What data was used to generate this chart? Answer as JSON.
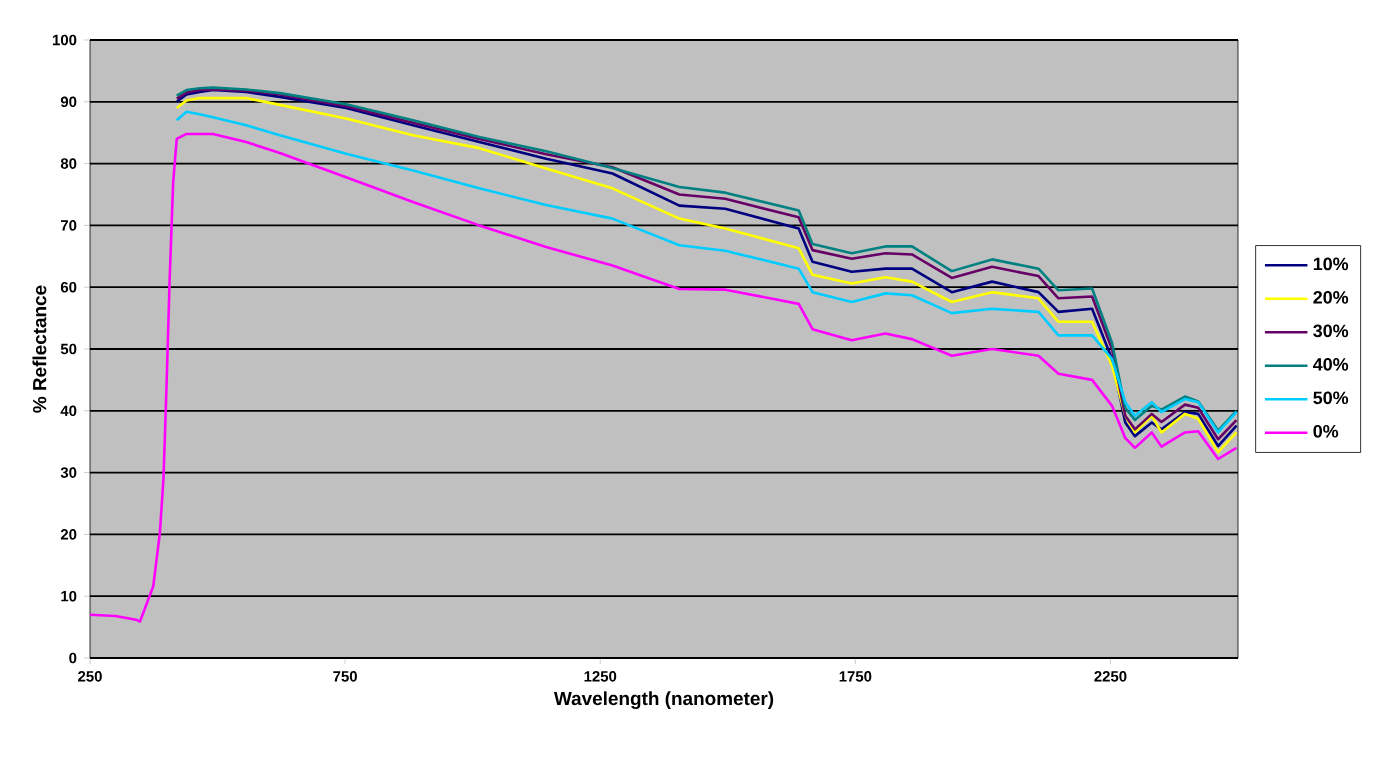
{
  "chart_data": {
    "type": "line",
    "xlabel": "Wavelength (nanometer)",
    "ylabel": "% Reflectance",
    "x": [
      250,
      300,
      340,
      348,
      374,
      387,
      394,
      400,
      406,
      413,
      420,
      439,
      465,
      491,
      556,
      622,
      752,
      883,
      1013,
      1144,
      1274,
      1405,
      1495,
      1639,
      1666,
      1743,
      1809,
      1861,
      1939,
      2018,
      2109,
      2148,
      2214,
      2253,
      2279,
      2298,
      2331,
      2350,
      2396,
      2422,
      2461,
      2497
    ],
    "series": [
      {
        "name": "10%",
        "color": "#000080",
        "values": [
          null,
          null,
          null,
          null,
          null,
          null,
          null,
          null,
          null,
          null,
          90,
          91.2,
          91.6,
          91.9,
          91.6,
          90.8,
          89,
          86.2,
          83.5,
          80.8,
          78.4,
          73.2,
          72.7,
          69.5,
          64.1,
          62.5,
          63,
          63,
          59.2,
          60.9,
          59.2,
          56,
          56.5,
          48.4,
          38.1,
          35.9,
          38.1,
          37,
          39.8,
          39.5,
          34.3,
          37.6
        ]
      },
      {
        "name": "20%",
        "color": "#ffff00",
        "values": [
          null,
          null,
          null,
          null,
          null,
          null,
          null,
          null,
          null,
          null,
          89,
          90.2,
          90.6,
          90.6,
          90.6,
          89.5,
          87.3,
          84.6,
          82.5,
          79.2,
          76,
          71.1,
          69.5,
          66.3,
          62,
          60.6,
          61.6,
          60.9,
          57.6,
          59.2,
          58.2,
          54.4,
          54.4,
          47.3,
          39.2,
          36.5,
          39.2,
          36.5,
          39.5,
          38.7,
          33.3,
          36.5
        ]
      },
      {
        "name": "30%",
        "color": "#660066",
        "values": [
          null,
          null,
          null,
          null,
          null,
          null,
          null,
          null,
          null,
          null,
          90.5,
          91.5,
          91.9,
          92,
          91.8,
          91.2,
          89.3,
          86.6,
          84,
          81.5,
          79.4,
          75,
          74.3,
          71.3,
          66,
          64.6,
          65.5,
          65.3,
          61.5,
          63.3,
          61.8,
          58.2,
          58.5,
          50,
          39.2,
          37,
          39.5,
          38.2,
          41,
          40.5,
          35.4,
          38.5
        ]
      },
      {
        "name": "40%",
        "color": "#008080",
        "values": [
          null,
          null,
          null,
          null,
          null,
          null,
          null,
          null,
          null,
          null,
          91,
          91.9,
          92.2,
          92.3,
          92,
          91.4,
          89.6,
          87,
          84.3,
          82,
          79.3,
          76.2,
          75.3,
          72.4,
          67,
          65.5,
          66.6,
          66.6,
          62.6,
          64.5,
          63,
          59.5,
          59.8,
          51,
          40.5,
          38.5,
          40.8,
          40.2,
          42.3,
          41.5,
          36.8,
          40
        ]
      },
      {
        "name": "50%",
        "color": "#00ccff",
        "values": [
          null,
          null,
          null,
          null,
          null,
          null,
          null,
          null,
          null,
          null,
          87,
          88.4,
          88,
          87.5,
          86.2,
          84.6,
          81.6,
          78.9,
          76,
          73.3,
          71.1,
          66.8,
          65.9,
          63,
          59.2,
          57.6,
          59,
          58.7,
          55.8,
          56.5,
          56,
          52.2,
          52.2,
          48.4,
          41.4,
          39.2,
          41.4,
          39.8,
          41.9,
          41.4,
          36.5,
          39.8
        ]
      },
      {
        "name": "0%",
        "color": "#ff00ff",
        "values": [
          7,
          6.8,
          6.2,
          5.9,
          11.6,
          20.3,
          29,
          44,
          61,
          77,
          84,
          84.8,
          84.8,
          84.8,
          83.5,
          81.7,
          77.8,
          73.8,
          70,
          66.5,
          63.5,
          59.7,
          59.6,
          57.3,
          53.2,
          51.4,
          52.5,
          51.6,
          48.9,
          50,
          48.9,
          46,
          45,
          40.8,
          35.6,
          34,
          36.5,
          34.2,
          36.5,
          36.7,
          32.2,
          34
        ]
      }
    ],
    "xlim": [
      250,
      2500
    ],
    "ylim": [
      0,
      100
    ],
    "xticks": [
      250,
      750,
      1250,
      1750,
      2250
    ],
    "yticks": [
      0,
      10,
      20,
      30,
      40,
      50,
      60,
      70,
      80,
      90,
      100
    ],
    "grid": "y",
    "legend": "right",
    "marker": "none",
    "line_style": "solid"
  }
}
